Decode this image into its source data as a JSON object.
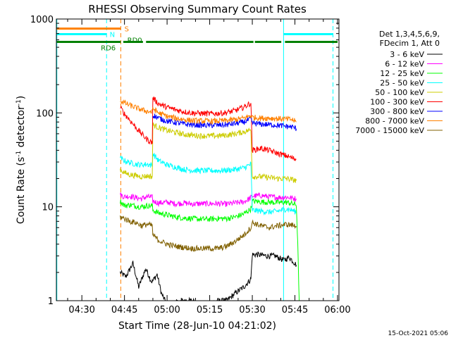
{
  "chart_data": {
    "type": "line",
    "title": "RHESSI Observing Summary Count Rates",
    "xlabel": "Start Time (28-Jun-10 04:21:02)",
    "ylabel_main": "Count Rate (s",
    "ylabel_sup1": "-1",
    "ylabel_mid": " detector",
    "ylabel_sup2": "-1",
    "ylabel_end": ")",
    "y_scale": "log",
    "ylim": [
      1,
      1000
    ],
    "xlim_minutes": [
      261.03,
      360.5
    ],
    "x_ticks": [
      {
        "minute": 270,
        "label": "04:30"
      },
      {
        "minute": 285,
        "label": "04:45"
      },
      {
        "minute": 300,
        "label": "05:00"
      },
      {
        "minute": 315,
        "label": "05:15"
      },
      {
        "minute": 330,
        "label": "05:30"
      },
      {
        "minute": 345,
        "label": "05:45"
      },
      {
        "minute": 360,
        "label": "06:00"
      }
    ],
    "y_ticks": [
      {
        "value": 1,
        "label": "1"
      },
      {
        "value": 10,
        "label": "10"
      },
      {
        "value": 100,
        "label": "100"
      },
      {
        "value": 1000,
        "label": "1000"
      }
    ],
    "legend_header": [
      "Det 1,3,4,5,6,9,",
      "FDecim 1, Att 0"
    ],
    "legend_placement": "right",
    "series": [
      {
        "name": "3 - 6 keV",
        "color": "#000000",
        "points": [
          [
            283.5,
            2
          ],
          [
            285.5,
            1.8
          ],
          [
            288,
            2.5
          ],
          [
            290,
            1.4
          ],
          [
            292.5,
            2.2
          ],
          [
            294.5,
            1.6
          ],
          [
            294.8,
            1.6
          ],
          [
            296.5,
            1.9
          ],
          [
            298,
            1.2
          ],
          [
            300,
            0.9
          ],
          [
            303,
            0.95
          ],
          [
            306,
            1.0
          ],
          [
            309,
            1.0
          ],
          [
            312,
            0.9
          ],
          [
            315,
            0.95
          ],
          [
            318,
            1.0
          ],
          [
            321,
            1.0
          ],
          [
            324,
            1.2
          ],
          [
            327,
            1.4
          ],
          [
            329.5,
            1.7
          ],
          [
            330,
            3.1
          ],
          [
            332,
            3.1
          ],
          [
            335,
            3.0
          ],
          [
            338,
            3.0
          ],
          [
            341,
            2.7
          ],
          [
            343,
            2.9
          ],
          [
            344.5,
            2.6
          ],
          [
            345.5,
            2.4
          ]
        ]
      },
      {
        "name": "6 - 12 keV",
        "color": "#ff00ff",
        "points": [
          [
            283.5,
            13.5
          ],
          [
            285,
            12.8
          ],
          [
            287,
            13
          ],
          [
            289,
            12.5
          ],
          [
            291,
            12.2
          ],
          [
            293,
            12.8
          ],
          [
            294.8,
            12.6
          ],
          [
            295,
            11.5
          ],
          [
            297,
            11
          ],
          [
            300,
            11.2
          ],
          [
            303,
            10.8
          ],
          [
            306,
            11
          ],
          [
            309,
            10.7
          ],
          [
            312,
            10.8
          ],
          [
            315,
            10.8
          ],
          [
            318,
            10.8
          ],
          [
            321,
            10.7
          ],
          [
            324,
            11
          ],
          [
            327,
            11.3
          ],
          [
            329.5,
            12.5
          ],
          [
            330,
            13
          ],
          [
            333,
            13.2
          ],
          [
            336,
            12.8
          ],
          [
            339,
            12.6
          ],
          [
            342,
            12.7
          ],
          [
            344,
            12.4
          ],
          [
            345.5,
            12.2
          ]
        ]
      },
      {
        "name": "12 - 25 keV",
        "color": "#00ff00",
        "points": [
          [
            283.5,
            11.5
          ],
          [
            285,
            10.3
          ],
          [
            287,
            10.5
          ],
          [
            289,
            10.2
          ],
          [
            291,
            10
          ],
          [
            293,
            10.3
          ],
          [
            294.8,
            10.2
          ],
          [
            295,
            9.2
          ],
          [
            297,
            8.6
          ],
          [
            300,
            8.2
          ],
          [
            303,
            7.8
          ],
          [
            306,
            7.6
          ],
          [
            309,
            7.5
          ],
          [
            312,
            7.4
          ],
          [
            315,
            7.4
          ],
          [
            318,
            7.5
          ],
          [
            321,
            7.5
          ],
          [
            324,
            7.8
          ],
          [
            327,
            8.4
          ],
          [
            329.5,
            9.5
          ],
          [
            330,
            11.5
          ],
          [
            333,
            11.3
          ],
          [
            336,
            11.2
          ],
          [
            339,
            11.1
          ],
          [
            342,
            11.2
          ],
          [
            344,
            10.8
          ],
          [
            345.5,
            10.5
          ],
          [
            346,
            4
          ],
          [
            346.5,
            1
          ]
        ]
      },
      {
        "name": "25 - 50 keV",
        "color": "#00ffff",
        "points": [
          [
            283.5,
            33
          ],
          [
            285,
            31
          ],
          [
            287,
            29.5
          ],
          [
            289,
            28.5
          ],
          [
            291,
            28
          ],
          [
            293,
            28.5
          ],
          [
            294.8,
            27.5
          ],
          [
            295,
            37
          ],
          [
            297,
            31
          ],
          [
            300,
            28
          ],
          [
            303,
            26.5
          ],
          [
            306,
            25
          ],
          [
            309,
            24.5
          ],
          [
            312,
            24.3
          ],
          [
            315,
            24.3
          ],
          [
            318,
            24.3
          ],
          [
            321,
            24.5
          ],
          [
            324,
            25
          ],
          [
            327,
            26
          ],
          [
            329.5,
            28.5
          ],
          [
            330,
            9.2
          ],
          [
            333,
            9.0
          ],
          [
            336,
            8.8
          ],
          [
            339,
            9.0
          ],
          [
            342,
            9.5
          ],
          [
            344,
            9.2
          ],
          [
            345.5,
            8.8
          ]
        ]
      },
      {
        "name": "50 - 100 keV",
        "color": "#cccc00",
        "points": [
          [
            283.5,
            25
          ],
          [
            285,
            23
          ],
          [
            287,
            22
          ],
          [
            289,
            21.5
          ],
          [
            291,
            21
          ],
          [
            293,
            21.3
          ],
          [
            294.8,
            21
          ],
          [
            295,
            75
          ],
          [
            297,
            70
          ],
          [
            300,
            65
          ],
          [
            303,
            62
          ],
          [
            306,
            59
          ],
          [
            309,
            58
          ],
          [
            312,
            57
          ],
          [
            315,
            57
          ],
          [
            318,
            57
          ],
          [
            321,
            58
          ],
          [
            324,
            60
          ],
          [
            327,
            63
          ],
          [
            329.5,
            66
          ],
          [
            330,
            21
          ],
          [
            333,
            21
          ],
          [
            336,
            20.5
          ],
          [
            339,
            20
          ],
          [
            342,
            20
          ],
          [
            344,
            19.5
          ],
          [
            345.5,
            19
          ]
        ]
      },
      {
        "name": "100 - 300 keV",
        "color": "#ff0000",
        "points": [
          [
            283.5,
            115
          ],
          [
            285,
            98
          ],
          [
            287,
            83
          ],
          [
            289,
            70
          ],
          [
            291,
            60
          ],
          [
            293,
            52
          ],
          [
            294.8,
            48
          ],
          [
            295,
            145
          ],
          [
            297,
            125
          ],
          [
            300,
            115
          ],
          [
            303,
            108
          ],
          [
            306,
            103
          ],
          [
            309,
            100
          ],
          [
            312,
            99
          ],
          [
            315,
            98
          ],
          [
            318,
            99
          ],
          [
            321,
            101
          ],
          [
            324,
            106
          ],
          [
            327,
            115
          ],
          [
            329.5,
            128
          ],
          [
            330,
            40
          ],
          [
            333,
            42
          ],
          [
            336,
            40
          ],
          [
            339,
            37
          ],
          [
            342,
            35
          ],
          [
            344,
            33
          ],
          [
            345.5,
            32
          ]
        ]
      },
      {
        "name": "300 - 800 keV",
        "color": "#0000ff",
        "points": [
          [
            295,
            95
          ],
          [
            297,
            88
          ],
          [
            300,
            82
          ],
          [
            303,
            79
          ],
          [
            306,
            76
          ],
          [
            309,
            75
          ],
          [
            312,
            74
          ],
          [
            315,
            74
          ],
          [
            318,
            74
          ],
          [
            321,
            75
          ],
          [
            324,
            77
          ],
          [
            327,
            80
          ],
          [
            329.5,
            86
          ],
          [
            330,
            78
          ],
          [
            333,
            76
          ],
          [
            336,
            75
          ],
          [
            339,
            74
          ],
          [
            342,
            72
          ],
          [
            344,
            71
          ],
          [
            345.5,
            68
          ]
        ]
      },
      {
        "name": "800 - 7000 keV",
        "color": "#ff8000",
        "points": [
          [
            283.5,
            135
          ],
          [
            285,
            128
          ],
          [
            287,
            120
          ],
          [
            289,
            114
          ],
          [
            291,
            108
          ],
          [
            293,
            104
          ],
          [
            294.8,
            102
          ],
          [
            295,
            112
          ],
          [
            297,
            100
          ],
          [
            300,
            92
          ],
          [
            303,
            88
          ],
          [
            306,
            85
          ],
          [
            309,
            83
          ],
          [
            312,
            82
          ],
          [
            315,
            82
          ],
          [
            318,
            82
          ],
          [
            321,
            83
          ],
          [
            324,
            85
          ],
          [
            327,
            88
          ],
          [
            329.5,
            94
          ],
          [
            330,
            90
          ],
          [
            333,
            88
          ],
          [
            336,
            88
          ],
          [
            339,
            87
          ],
          [
            342,
            86
          ],
          [
            344,
            85
          ],
          [
            345.5,
            80
          ]
        ]
      },
      {
        "name": "7000 - 15000 keV",
        "color": "#806000",
        "points": [
          [
            283.5,
            7.8
          ],
          [
            285,
            7.5
          ],
          [
            287,
            7.0
          ],
          [
            289,
            6.8
          ],
          [
            291,
            6.3
          ],
          [
            293,
            6.5
          ],
          [
            294.8,
            6.3
          ],
          [
            295,
            5.0
          ],
          [
            297,
            4.4
          ],
          [
            300,
            4.0
          ],
          [
            303,
            3.8
          ],
          [
            306,
            3.7
          ],
          [
            309,
            3.6
          ],
          [
            312,
            3.6
          ],
          [
            315,
            3.6
          ],
          [
            318,
            3.6
          ],
          [
            321,
            3.8
          ],
          [
            324,
            4.3
          ],
          [
            327,
            5.0
          ],
          [
            329.5,
            6.0
          ],
          [
            330,
            6.8
          ],
          [
            333,
            6.3
          ],
          [
            336,
            6.0
          ],
          [
            339,
            6.3
          ],
          [
            342,
            6.5
          ],
          [
            344,
            6.4
          ],
          [
            345.5,
            6.2
          ]
        ]
      }
    ],
    "vertical_lines": [
      {
        "minute": 261.2,
        "color": "#00ffff",
        "style": "solid"
      },
      {
        "minute": 278.7,
        "color": "#00ffff",
        "style": "dashed"
      },
      {
        "minute": 283.7,
        "color": "#ff8000",
        "style": "dashed"
      },
      {
        "minute": 341.0,
        "color": "#00ffff",
        "style": "solid"
      },
      {
        "minute": 358.4,
        "color": "#00ffff",
        "style": "dashed"
      }
    ],
    "status_bars": [
      {
        "label": "S",
        "color": "#ff8000",
        "value": 790,
        "segments": [
          [
            261.2,
            283.7
          ]
        ],
        "label_minute": 285.0
      },
      {
        "label": "N",
        "color": "#00ffff",
        "value": 690,
        "segments": [
          [
            261.2,
            278.7
          ],
          [
            341.0,
            358.4
          ]
        ],
        "label_minute": 279.8
      },
      {
        "label": "RD6",
        "color": "#008000",
        "value": 570,
        "segments": [
          [
            261.2,
            283.7
          ],
          [
            284.6,
            291.5
          ],
          [
            292.6,
            330.4
          ],
          [
            330.9,
            340.2
          ],
          [
            341.5,
            360.0
          ]
        ],
        "label_minute": 276.7,
        "label_below": true
      },
      {
        "label": "RD0",
        "color": "#008000",
        "value": 600,
        "label_minute": 286.0
      }
    ]
  },
  "footer": {
    "timestamp": "15-Oct-2021 05:06"
  }
}
